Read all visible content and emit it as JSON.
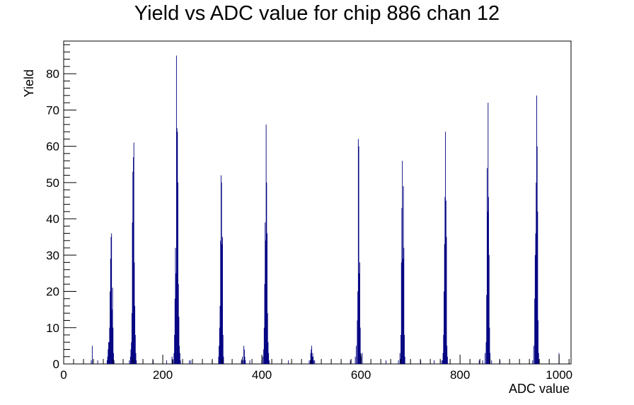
{
  "chart_data": {
    "type": "histogram",
    "title": "Yield vs ADC value for chip 886 chan 12",
    "xlabel": "ADC value",
    "ylabel": "Yield",
    "xlim": [
      0,
      1024
    ],
    "ylim": [
      0,
      89
    ],
    "x_ticks": [
      0,
      200,
      400,
      600,
      800,
      1000
    ],
    "y_ticks": [
      0,
      10,
      20,
      30,
      40,
      50,
      60,
      70,
      80
    ],
    "grid": false,
    "legend": "none",
    "line_color": "#000080",
    "bin_width": 1,
    "series": [
      {
        "bins": [
          [
            55,
            1
          ],
          [
            57,
            5
          ],
          [
            68,
            1
          ],
          [
            87,
            1
          ],
          [
            88,
            2
          ],
          [
            89,
            4
          ],
          [
            90,
            6
          ],
          [
            91,
            6
          ],
          [
            92,
            10
          ],
          [
            93,
            20
          ],
          [
            94,
            29
          ],
          [
            95,
            35
          ],
          [
            96,
            36
          ],
          [
            97,
            15
          ],
          [
            98,
            21
          ],
          [
            99,
            10
          ],
          [
            100,
            3
          ],
          [
            101,
            1
          ],
          [
            132,
            1
          ],
          [
            134,
            2
          ],
          [
            135,
            4
          ],
          [
            136,
            6
          ],
          [
            137,
            14
          ],
          [
            138,
            39
          ],
          [
            139,
            53
          ],
          [
            140,
            57
          ],
          [
            141,
            61
          ],
          [
            142,
            28
          ],
          [
            143,
            16
          ],
          [
            144,
            8
          ],
          [
            145,
            3
          ],
          [
            146,
            1
          ],
          [
            180,
            1
          ],
          [
            207,
            1
          ],
          [
            218,
            2
          ],
          [
            220,
            1
          ],
          [
            222,
            3
          ],
          [
            223,
            8
          ],
          [
            224,
            18
          ],
          [
            225,
            32
          ],
          [
            226,
            25
          ],
          [
            227,
            85
          ],
          [
            228,
            65
          ],
          [
            229,
            64
          ],
          [
            230,
            50
          ],
          [
            231,
            22
          ],
          [
            232,
            13
          ],
          [
            233,
            5
          ],
          [
            234,
            3
          ],
          [
            235,
            1
          ],
          [
            253,
            1
          ],
          [
            256,
            1
          ],
          [
            299,
            1
          ],
          [
            312,
            2
          ],
          [
            313,
            5
          ],
          [
            314,
            10
          ],
          [
            315,
            16
          ],
          [
            316,
            34
          ],
          [
            317,
            52
          ],
          [
            318,
            50
          ],
          [
            319,
            33
          ],
          [
            320,
            35
          ],
          [
            321,
            8
          ],
          [
            322,
            2
          ],
          [
            358,
            1
          ],
          [
            360,
            2
          ],
          [
            362,
            1
          ],
          [
            363,
            5
          ],
          [
            364,
            4
          ],
          [
            365,
            2
          ],
          [
            366,
            1
          ],
          [
            375,
            1
          ],
          [
            399,
            1
          ],
          [
            401,
            2
          ],
          [
            403,
            4
          ],
          [
            404,
            10
          ],
          [
            405,
            22
          ],
          [
            406,
            39
          ],
          [
            407,
            34
          ],
          [
            408,
            66
          ],
          [
            409,
            50
          ],
          [
            410,
            36
          ],
          [
            411,
            14
          ],
          [
            412,
            6
          ],
          [
            413,
            3
          ],
          [
            414,
            1
          ],
          [
            453,
            1
          ],
          [
            495,
            1
          ],
          [
            497,
            1
          ],
          [
            498,
            3
          ],
          [
            499,
            4
          ],
          [
            500,
            5
          ],
          [
            501,
            2
          ],
          [
            502,
            3
          ],
          [
            503,
            2
          ],
          [
            504,
            1
          ],
          [
            506,
            1
          ],
          [
            578,
            1
          ],
          [
            588,
            2
          ],
          [
            590,
            5
          ],
          [
            592,
            12
          ],
          [
            593,
            20
          ],
          [
            594,
            62
          ],
          [
            595,
            60
          ],
          [
            596,
            25
          ],
          [
            597,
            28
          ],
          [
            598,
            10
          ],
          [
            599,
            3
          ],
          [
            600,
            2
          ],
          [
            602,
            3
          ],
          [
            650,
            1
          ],
          [
            675,
            1
          ],
          [
            678,
            3
          ],
          [
            680,
            8
          ],
          [
            681,
            28
          ],
          [
            682,
            43
          ],
          [
            683,
            56
          ],
          [
            684,
            29
          ],
          [
            685,
            49
          ],
          [
            686,
            32
          ],
          [
            687,
            8
          ],
          [
            688,
            2
          ],
          [
            720,
            1
          ],
          [
            747,
            1
          ],
          [
            762,
            1
          ],
          [
            764,
            1
          ],
          [
            765,
            3
          ],
          [
            766,
            8
          ],
          [
            767,
            20
          ],
          [
            768,
            33
          ],
          [
            769,
            46
          ],
          [
            770,
            64
          ],
          [
            771,
            45
          ],
          [
            772,
            35
          ],
          [
            773,
            5
          ],
          [
            774,
            2
          ],
          [
            838,
            1
          ],
          [
            845,
            1
          ],
          [
            850,
            3
          ],
          [
            852,
            6
          ],
          [
            853,
            19
          ],
          [
            854,
            54
          ],
          [
            855,
            42
          ],
          [
            856,
            72
          ],
          [
            857,
            46
          ],
          [
            858,
            30
          ],
          [
            859,
            10
          ],
          [
            860,
            3
          ],
          [
            863,
            1
          ],
          [
            880,
            1
          ],
          [
            946,
            1
          ],
          [
            948,
            5
          ],
          [
            950,
            18
          ],
          [
            951,
            30
          ],
          [
            952,
            36
          ],
          [
            953,
            50
          ],
          [
            954,
            74
          ],
          [
            955,
            60
          ],
          [
            956,
            42
          ],
          [
            957,
            12
          ],
          [
            958,
            3
          ],
          [
            959,
            1
          ],
          [
            999,
            3
          ]
        ]
      }
    ]
  }
}
